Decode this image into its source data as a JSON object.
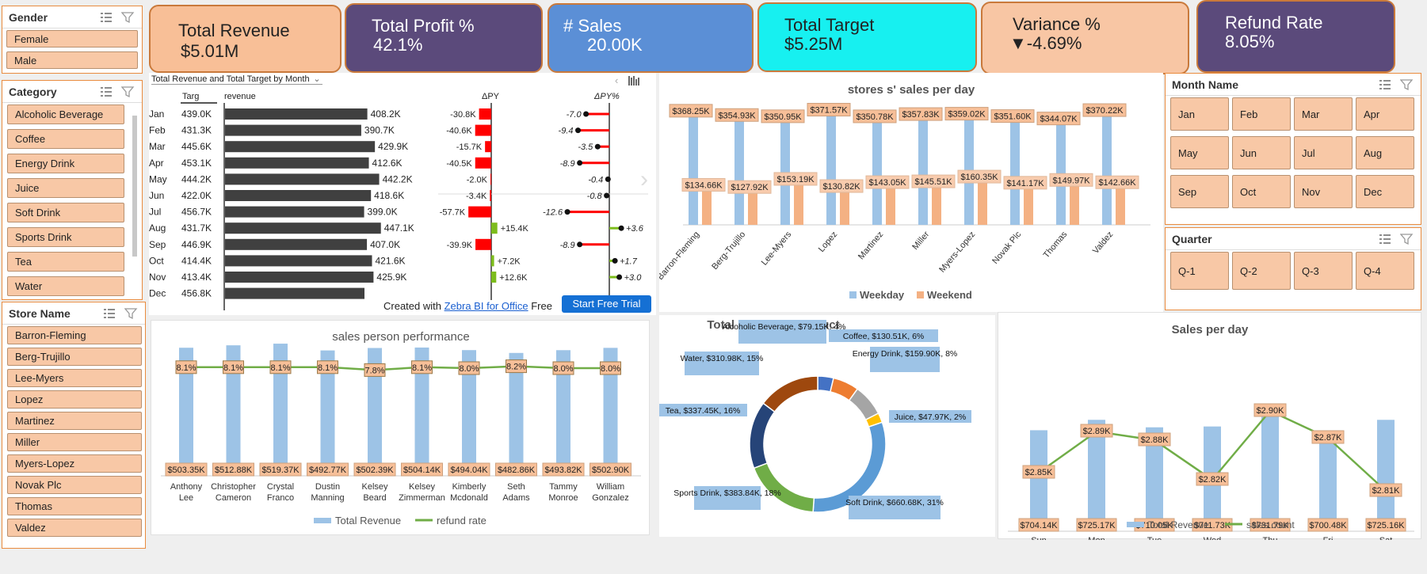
{
  "slicers": {
    "gender": {
      "title": "Gender",
      "items": [
        "Female",
        "Male"
      ]
    },
    "category": {
      "title": "Category",
      "items": [
        "Alcoholic Beverage",
        "Coffee",
        "Energy Drink",
        "Juice",
        "Soft Drink",
        "Sports Drink",
        "Tea",
        "Water"
      ]
    },
    "store": {
      "title": "Store Name",
      "items": [
        "Barron-Fleming",
        "Berg-Trujillo",
        "Lee-Myers",
        "Lopez",
        "Martinez",
        "Miller",
        "Myers-Lopez",
        "Novak Plc",
        "Thomas",
        "Valdez"
      ]
    },
    "month": {
      "title": "Month Name",
      "items": [
        "Jan",
        "Feb",
        "Mar",
        "Apr",
        "May",
        "Jun",
        "Jul",
        "Aug",
        "Sep",
        "Oct",
        "Nov",
        "Dec"
      ]
    },
    "quarter": {
      "title": "Quarter",
      "items": [
        "Q-1",
        "Q-2",
        "Q-3",
        "Q-4"
      ]
    }
  },
  "kpis": [
    {
      "label": "Total Revenue",
      "value": "$5.01M",
      "bg": "#f8bf97",
      "fg": "#222"
    },
    {
      "label": "Total Profit %",
      "value": "42.1%",
      "bg": "#5b4a7b",
      "fg": "#fff"
    },
    {
      "label": "# Sales",
      "value": "20.00K",
      "bg": "#5b8fd6",
      "fg": "#fff"
    },
    {
      "label": "Total Target",
      "value": "$5.25M",
      "bg": "#17f0f0",
      "fg": "#222"
    },
    {
      "label": "Variance %",
      "value": "▼-4.69%",
      "bg": "#f8c6a4",
      "fg": "#222"
    },
    {
      "label": "Refund Rate",
      "value": "8.05%",
      "bg": "#5b4a7b",
      "fg": "#fff"
    }
  ],
  "zebra": {
    "dropdown": "Total Revenue and Total Target by Month",
    "col_target": "Targ",
    "col_revenue": "revenue",
    "col_dpy": "ΔPY",
    "col_dpyp": "ΔPY%",
    "footer_text": "Created with",
    "footer_link": "Zebra BI for Office",
    "footer_free": "Free",
    "trial_btn": "Start Free Trial",
    "rows": [
      {
        "m": "Jan",
        "t": "439.0K",
        "r": "408.2K",
        "rv": 408.2,
        "d": "-30.8K",
        "dv": -30.8,
        "p": "-7.0",
        "pv": -7.0
      },
      {
        "m": "Feb",
        "t": "431.3K",
        "r": "390.7K",
        "rv": 390.7,
        "d": "-40.6K",
        "dv": -40.6,
        "p": "-9.4",
        "pv": -9.4
      },
      {
        "m": "Mar",
        "t": "445.6K",
        "r": "429.9K",
        "rv": 429.9,
        "d": "-15.7K",
        "dv": -15.7,
        "p": "-3.5",
        "pv": -3.5
      },
      {
        "m": "Apr",
        "t": "453.1K",
        "r": "412.6K",
        "rv": 412.6,
        "d": "-40.5K",
        "dv": -40.5,
        "p": "-8.9",
        "pv": -8.9
      },
      {
        "m": "May",
        "t": "444.2K",
        "r": "442.2K",
        "rv": 442.2,
        "d": "-2.0K",
        "dv": -2.0,
        "p": "-0.4",
        "pv": -0.4
      },
      {
        "m": "Jun",
        "t": "422.0K",
        "r": "418.6K",
        "rv": 418.6,
        "d": "-3.4K",
        "dv": -3.4,
        "p": "-0.8",
        "pv": -0.8
      },
      {
        "m": "Jul",
        "t": "456.7K",
        "r": "399.0K",
        "rv": 399.0,
        "d": "-57.7K",
        "dv": -57.7,
        "p": "-12.6",
        "pv": -12.6
      },
      {
        "m": "Aug",
        "t": "431.7K",
        "r": "447.1K",
        "rv": 447.1,
        "d": "+15.4K",
        "dv": 15.4,
        "p": "+3.6",
        "pv": 3.6
      },
      {
        "m": "Sep",
        "t": "446.9K",
        "r": "407.0K",
        "rv": 407.0,
        "d": "-39.9K",
        "dv": -39.9,
        "p": "-8.9",
        "pv": -8.9
      },
      {
        "m": "Oct",
        "t": "414.4K",
        "r": "421.6K",
        "rv": 421.6,
        "d": "+7.2K",
        "dv": 7.2,
        "p": "+1.7",
        "pv": 1.7
      },
      {
        "m": "Nov",
        "t": "413.4K",
        "r": "425.9K",
        "rv": 425.9,
        "d": "+12.6K",
        "dv": 12.6,
        "p": "+3.0",
        "pv": 3.0
      },
      {
        "m": "Dec",
        "t": "456.8K",
        "r": "",
        "rv": 400,
        "d": "",
        "dv": 0,
        "p": "",
        "pv": 0
      }
    ]
  },
  "chart_data": [
    {
      "type": "bar",
      "title": "stores s' sales per day",
      "categories": [
        "Barron-Fleming",
        "Berg-Trujillo",
        "Lee-Myers",
        "Lopez",
        "Martinez",
        "Miller",
        "Myers-Lopez",
        "Novak Plc",
        "Thomas",
        "Valdez"
      ],
      "series": [
        {
          "name": "Weekday",
          "values": [
            368.25,
            354.93,
            350.95,
            371.57,
            350.78,
            357.83,
            359.02,
            351.6,
            344.07,
            370.22
          ],
          "labels": [
            "$368.25K",
            "$354.93K",
            "$350.95K",
            "$371.57K",
            "$350.78K",
            "$357.83K",
            "$359.02K",
            "$351.60K",
            "$344.07K",
            "$370.22K"
          ]
        },
        {
          "name": "Weekend",
          "values": [
            134.66,
            127.92,
            153.19,
            130.82,
            143.05,
            145.51,
            160.35,
            141.17,
            149.97,
            142.66
          ],
          "labels": [
            "$134.66K",
            "$127.92K",
            "$153.19K",
            "$130.82K",
            "$143.05K",
            "$145.51K",
            "$160.35K",
            "$141.17K",
            "$149.97K",
            "$142.66K"
          ]
        }
      ],
      "legend": "bottom"
    },
    {
      "type": "bar",
      "title": "sales person performance",
      "categories": [
        "Anthony Lee",
        "Christopher Cameron",
        "Crystal Franco",
        "Dustin Manning",
        "Kelsey Beard",
        "Kelsey Zimmerman",
        "Kimberly Mcdonald",
        "Seth Adams",
        "Tammy Monroe",
        "William Gonzalez"
      ],
      "series": [
        {
          "name": "Total Revenue",
          "values": [
            503.35,
            512.88,
            519.37,
            492.77,
            502.39,
            504.14,
            494.04,
            482.86,
            493.82,
            502.9
          ],
          "labels": [
            "$503.35K",
            "$512.88K",
            "$519.37K",
            "$492.77K",
            "$502.39K",
            "$504.14K",
            "$494.04K",
            "$482.86K",
            "$493.82K",
            "$502.90K"
          ]
        },
        {
          "name": "refund rate",
          "type": "line",
          "values": [
            8.1,
            8.1,
            8.1,
            8.1,
            7.8,
            8.1,
            8.0,
            8.2,
            8.0,
            8.0
          ],
          "labels": [
            "8.1%",
            "8.1%",
            "8.1%",
            "8.1%",
            "7.8%",
            "8.1%",
            "8.0%",
            "8.2%",
            "8.0%",
            "8.0%"
          ]
        }
      ],
      "legend": "bottom"
    },
    {
      "type": "pie",
      "title": "Total Profit Per Product",
      "slices": [
        {
          "name": "Alcoholic Beverage",
          "value": 79.15,
          "label": "Alcoholic Beverage, $79.15K, 4%",
          "color": "#4472c4"
        },
        {
          "name": "Coffee",
          "value": 130.51,
          "label": "Coffee, $130.51K, 6%",
          "color": "#ed7d31"
        },
        {
          "name": "Energy Drink",
          "value": 159.9,
          "label": "Energy Drink, $159.90K, 8%",
          "color": "#a5a5a5"
        },
        {
          "name": "Juice",
          "value": 47.97,
          "label": "Juice, $47.97K, 2%",
          "color": "#ffc000"
        },
        {
          "name": "Soft Drink",
          "value": 660.68,
          "label": "Soft Drink, $660.68K, 31%",
          "color": "#5b9bd5"
        },
        {
          "name": "Sports Drink",
          "value": 383.84,
          "label": "Sports Drink, $383.84K, 18%",
          "color": "#70ad47"
        },
        {
          "name": "Tea",
          "value": 337.45,
          "label": "Tea, $337.45K, 16%",
          "color": "#264478"
        },
        {
          "name": "Water",
          "value": 310.98,
          "label": "Water, $310.98K, 15%",
          "color": "#9e480e"
        }
      ]
    },
    {
      "type": "bar",
      "title": "Sales per day",
      "categories": [
        "Sun",
        "Mon",
        "Tue",
        "Wed",
        "Thu",
        "Fri",
        "Sat"
      ],
      "series": [
        {
          "name": "Total Revenue",
          "values": [
            704.14,
            725.17,
            710.05,
            711.73,
            731.79,
            700.48,
            725.16
          ],
          "labels": [
            "$704.14K",
            "$725.17K",
            "$710.05K",
            "$711.73K",
            "$731.79K",
            "$700.48K",
            "$725.16K"
          ]
        },
        {
          "name": "sales count",
          "type": "line",
          "values": [
            2.85,
            2.89,
            2.88,
            2.82,
            2.9,
            2.87,
            2.81
          ],
          "labels": [
            "$2.85K",
            "$2.89K",
            "$2.88K",
            "$2.82K",
            "$2.90K",
            "$2.87K",
            "$2.81K"
          ]
        }
      ],
      "legend": "bottom"
    }
  ]
}
